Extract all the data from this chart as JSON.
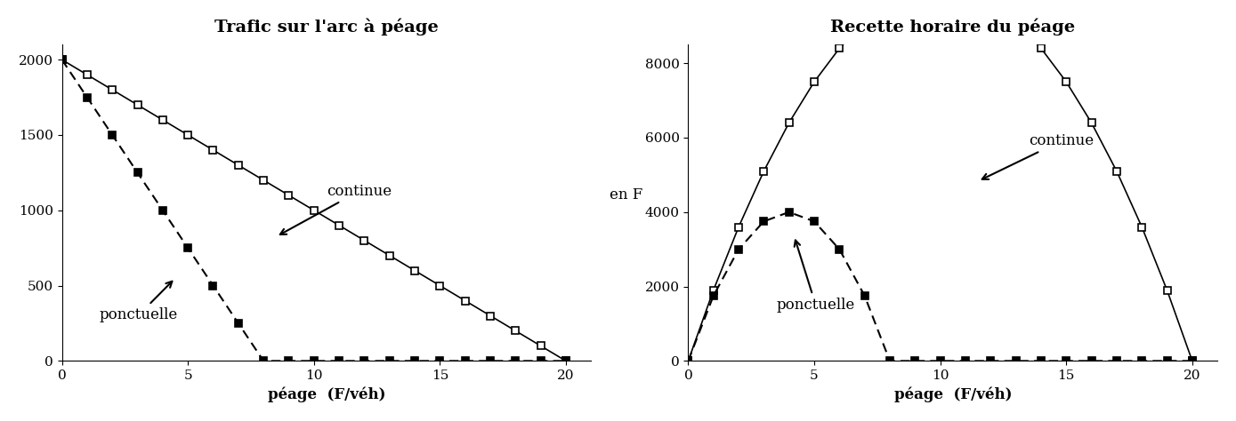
{
  "title_left": "Trafic sur l'arc à péage",
  "title_right": "Recette horaire du péage",
  "xlabel": "péage  (F/véh)",
  "ylabel_right": "en F",
  "left_ylim": [
    0,
    2100
  ],
  "right_ylim": [
    0,
    8500
  ],
  "xlim": [
    0,
    21
  ],
  "xticks": [
    0,
    5,
    10,
    15,
    20
  ],
  "left_yticks": [
    0,
    500,
    1000,
    1500,
    2000
  ],
  "right_yticks": [
    0,
    2000,
    4000,
    6000,
    8000
  ],
  "peage_max_continue": 20,
  "traffic_max_continue": 2000,
  "peage_max_ponctuelle": 8,
  "traffic_max_ponctuelle": 2000,
  "label_continue": "continue",
  "label_ponctuelle": "ponctuelle",
  "color_continue": "#000000",
  "color_ponctuelle": "#000000",
  "bg_color": "#ffffff",
  "title_fontsize": 14,
  "label_fontsize": 12,
  "tick_fontsize": 11
}
